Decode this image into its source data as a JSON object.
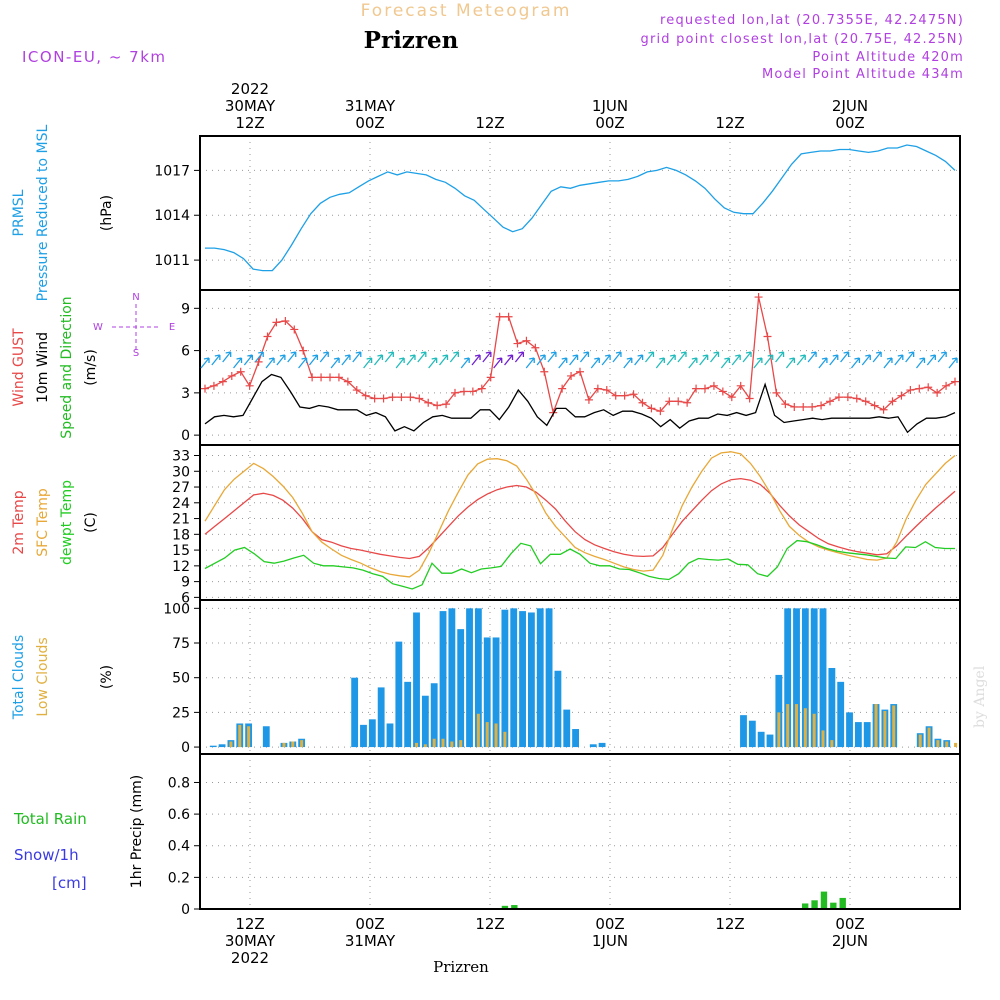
{
  "header": {
    "super_title": "Forecast Meteogram",
    "title": "Prizren",
    "model": "ICON-EU, ~ 7km",
    "requested": "requested lon,lat (20.7355E, 42.2475N)",
    "grid_point": "grid point closest lon,lat (20.75E, 42.25N)",
    "point_altitude": "Point Altitude 420m",
    "model_altitude": "Model Point Altitude 434m",
    "footer": "Prizren",
    "watermark": "by Angel"
  },
  "colors": {
    "pressure": "#1ea0e6",
    "gust": "#e84848",
    "wind": "#000000",
    "temp2m": "#e84848",
    "sfc": "#e8a838",
    "dewpt": "#22cc22",
    "total_clouds": "#1e98e6",
    "low_clouds": "#e0b040",
    "rain": "#22bb22",
    "snow": "#3a3ae0",
    "label_purple": "#b040e0",
    "super_title": "#f0c890",
    "grid": "#999999"
  },
  "time_axis": {
    "top": [
      {
        "h": 12,
        "lines": [
          "2022",
          "30MAY",
          "12Z"
        ]
      },
      {
        "h": 24,
        "lines": [
          "31MAY",
          "00Z"
        ]
      },
      {
        "h": 36,
        "lines": [
          "12Z"
        ]
      },
      {
        "h": 48,
        "lines": [
          "1JUN",
          "00Z"
        ]
      },
      {
        "h": 60,
        "lines": [
          "12Z"
        ]
      },
      {
        "h": 72,
        "lines": [
          "2JUN",
          "00Z"
        ]
      }
    ],
    "bottom": [
      {
        "h": 12,
        "lines": [
          "12Z",
          "30MAY",
          "2022"
        ]
      },
      {
        "h": 24,
        "lines": [
          "00Z",
          "31MAY"
        ]
      },
      {
        "h": 36,
        "lines": [
          "12Z"
        ]
      },
      {
        "h": 48,
        "lines": [
          "00Z",
          "1JUN"
        ]
      },
      {
        "h": 60,
        "lines": [
          "12Z"
        ]
      },
      {
        "h": 72,
        "lines": [
          "00Z",
          "2JUN"
        ]
      }
    ],
    "start_hour": 7,
    "end_hour": 83
  },
  "chart_data": [
    {
      "type": "line",
      "panel": "pressure",
      "ylabels": [
        {
          "text": "PRMSL",
          "color": "#1ea0e6"
        },
        {
          "text": "Pressure Reduced to MSL",
          "color": "#1ea0e6"
        },
        {
          "text": "(hPa)",
          "color": "#000000"
        }
      ],
      "yticks": [
        1011,
        1014,
        1017
      ],
      "ylim": [
        1009,
        1019.3
      ],
      "series": [
        {
          "key": "prmsl",
          "values": [
            1011.8,
            1011.8,
            1011.7,
            1011.5,
            1011.1,
            1010.4,
            1010.3,
            1010.3,
            1011,
            1012,
            1013.1,
            1014.1,
            1014.8,
            1015.2,
            1015.4,
            1015.5,
            1015.9,
            1016.3,
            1016.6,
            1016.9,
            1016.7,
            1016.9,
            1016.8,
            1016.7,
            1016.4,
            1016.2,
            1015.8,
            1015.3,
            1015,
            1014.4,
            1013.8,
            1013.2,
            1012.9,
            1013.1,
            1013.8,
            1014.7,
            1015.6,
            1015.9,
            1015.8,
            1016,
            1016.1,
            1016.2,
            1016.3,
            1016.3,
            1016.4,
            1016.6,
            1016.9,
            1017,
            1017.2,
            1017,
            1016.7,
            1016.3,
            1015.8,
            1015.1,
            1014.5,
            1014.2,
            1014.1,
            1014.1,
            1014.8,
            1015.6,
            1016.5,
            1017.4,
            1018.1,
            1018.2,
            1018.3,
            1018.3,
            1018.4,
            1018.4,
            1018.3,
            1018.2,
            1018.3,
            1018.5,
            1018.5,
            1018.7,
            1018.6,
            1018.3,
            1018,
            1017.6,
            1017
          ]
        }
      ]
    },
    {
      "type": "line",
      "panel": "wind",
      "ylabels": [
        {
          "text": "Wind GUST",
          "color": "#e84848"
        },
        {
          "text": "10m Wind",
          "color": "#000000"
        },
        {
          "text": "Speed and Direction",
          "color": "#22bb22"
        },
        {
          "text": "(m/s)",
          "color": "#000000"
        }
      ],
      "compass": {
        "north": "N",
        "south": "S",
        "west": "W",
        "east": "E"
      },
      "yticks": [
        0,
        3,
        6,
        9
      ],
      "ylim": [
        -0.7,
        10.3
      ],
      "series": [
        {
          "key": "gust",
          "values": [
            3.3,
            3.5,
            3.8,
            4.2,
            4.5,
            3.5,
            5.2,
            7,
            8,
            8.1,
            7.5,
            6,
            4.1,
            4.1,
            4.1,
            4.1,
            3.8,
            3.2,
            2.8,
            2.6,
            2.6,
            2.7,
            2.7,
            2.7,
            2.6,
            2.3,
            2.1,
            2.2,
            3,
            3.1,
            3.1,
            3.3,
            4.1,
            8.4,
            8.4,
            6.5,
            6.7,
            6.2,
            4.5,
            1.6,
            3.3,
            4.2,
            4.5,
            2.5,
            3.3,
            3.2,
            2.8,
            2.8,
            2.9,
            2.3,
            1.9,
            1.7,
            2.4,
            2.4,
            2.3,
            3.3,
            3.3,
            3.5,
            3.1,
            2.7,
            3.5,
            2.6,
            9.8,
            7,
            3,
            2.2,
            2,
            2,
            2,
            2.1,
            2.4,
            2.7,
            2.7,
            2.6,
            2.4,
            2.1,
            1.8,
            2.4,
            2.8,
            3.2,
            3.3,
            3.4,
            3,
            3.5,
            3.8
          ]
        },
        {
          "key": "wind10m",
          "values": [
            0.8,
            1.3,
            1.4,
            1.3,
            1.4,
            2.6,
            3.8,
            4.3,
            4.1,
            3.1,
            2,
            1.9,
            2.1,
            2,
            1.8,
            1.8,
            1.8,
            1.4,
            1.6,
            1.3,
            0.3,
            0.6,
            0.3,
            0.9,
            1.3,
            1.4,
            1.2,
            1.2,
            1.2,
            1.8,
            1.8,
            1.1,
            2,
            3.2,
            2.4,
            1.3,
            0.7,
            1.9,
            1.9,
            1.3,
            1.3,
            1.6,
            1.8,
            1.4,
            1.7,
            1.7,
            1.5,
            1.2,
            0.6,
            1.1,
            0.5,
            1,
            1.2,
            1.2,
            1.5,
            1.4,
            1.6,
            1.4,
            1.6,
            3.6,
            1.4,
            0.9,
            1,
            1.1,
            1.2,
            1.1,
            1.2,
            1.2,
            1.2,
            1.2,
            1.2,
            1.3,
            1.2,
            1.3,
            0.2,
            0.8,
            1.2,
            1.2,
            1.3,
            1.6
          ]
        }
      ]
    },
    {
      "type": "line",
      "panel": "temperature",
      "ylabels": [
        {
          "text": "2m Temp",
          "color": "#e84848"
        },
        {
          "text": "SFC Temp",
          "color": "#e8a838"
        },
        {
          "text": "dewpt Temp",
          "color": "#22cc22"
        },
        {
          "text": "(C)",
          "color": "#000000"
        }
      ],
      "yticks": [
        6,
        9,
        12,
        15,
        18,
        21,
        24,
        27,
        30,
        33
      ],
      "ylim": [
        5.5,
        35
      ],
      "series": [
        {
          "key": "temp2m",
          "values": [
            18,
            19.5,
            21,
            22.5,
            24,
            25.5,
            25.8,
            25.4,
            24.5,
            23,
            21,
            18.5,
            17,
            16.5,
            15.8,
            15.3,
            15,
            14.6,
            14.2,
            13.9,
            13.6,
            13.4,
            13.8,
            15.5,
            17.5,
            19.5,
            21.5,
            23.2,
            24.6,
            25.7,
            26.5,
            27,
            27.3,
            27,
            26,
            24.5,
            22.8,
            20.5,
            18.5,
            17,
            16,
            15.3,
            14.7,
            14.2,
            13.9,
            13.8,
            13.9,
            15.5,
            18,
            20.5,
            22.5,
            24.5,
            26.3,
            27.6,
            28.4,
            28.6,
            28.3,
            27.5,
            25.8,
            23.5,
            21.5,
            19.8,
            18.5,
            17.2,
            16.2,
            15.6,
            15.1,
            14.7,
            14.4,
            14.1,
            14.3,
            15.8,
            17.7,
            19.5,
            21.3,
            23,
            24.6,
            26.2
          ]
        },
        {
          "key": "sfc",
          "values": [
            20.5,
            23.5,
            26.5,
            28.5,
            30,
            31.5,
            30.5,
            29,
            27.2,
            25,
            22,
            18.5,
            16.5,
            15.2,
            14,
            13.2,
            12.5,
            11.6,
            10.9,
            10.4,
            10.1,
            9.9,
            11.2,
            14.5,
            18.5,
            22.5,
            26,
            29.3,
            31.4,
            32.3,
            32.4,
            32,
            31,
            28.5,
            25.5,
            22,
            19.5,
            17.5,
            15.5,
            14.5,
            13.8,
            13.2,
            12.5,
            11.8,
            11.3,
            11,
            11.2,
            14,
            19,
            23.5,
            27,
            30,
            32.5,
            33.5,
            33.7,
            33.3,
            31.5,
            29,
            26,
            22.5,
            19.5,
            17.8,
            16.5,
            15.6,
            15,
            14.5,
            14,
            13.6,
            13.2,
            13.1,
            13.5,
            16.5,
            21,
            24.5,
            27.5,
            29.5,
            31.5,
            33
          ]
        },
        {
          "key": "dewpt",
          "values": [
            11.5,
            12.5,
            13.5,
            15,
            15.5,
            14.3,
            12.8,
            12.5,
            12.9,
            13.5,
            14,
            12.5,
            12,
            12,
            11.8,
            11.6,
            11.2,
            10.5,
            10,
            8.6,
            8.1,
            7.6,
            8.4,
            12.5,
            10.6,
            10.6,
            11.4,
            10.7,
            11.4,
            11.6,
            11.9,
            14.3,
            16.3,
            15.8,
            12.4,
            14.2,
            14.2,
            15.2,
            14.2,
            12.5,
            12,
            12,
            11.4,
            11.3,
            10.7,
            10,
            9.6,
            9.4,
            10.5,
            12.5,
            13.4,
            13.2,
            13.1,
            13.3,
            12.3,
            12.2,
            10.5,
            10,
            11.8,
            15.3,
            16.8,
            16.6,
            16,
            15.3,
            14.8,
            14.5,
            14.3,
            14.1,
            13.8,
            13.5,
            13.4,
            15.6,
            15.5,
            16.6,
            15.5,
            15.3,
            15.3
          ]
        }
      ]
    },
    {
      "type": "bar",
      "panel": "clouds",
      "ylabels": [
        {
          "text": "Total Clouds",
          "color": "#1ea0e6"
        },
        {
          "text": "Low Clouds",
          "color": "#e0b040"
        },
        {
          "text": "(%)",
          "color": "#000000"
        }
      ],
      "yticks": [
        0,
        25,
        50,
        75,
        100
      ],
      "ylim": [
        -5,
        106
      ],
      "series": [
        {
          "key": "total",
          "values": [
            0,
            1,
            2,
            5,
            17,
            17,
            0,
            15,
            0,
            3,
            4,
            6,
            0,
            0,
            0,
            0,
            0,
            50,
            16,
            20,
            43,
            17,
            76,
            47,
            97,
            37,
            46,
            98,
            100,
            85,
            100,
            100,
            79,
            79,
            99,
            100,
            98,
            97,
            100,
            100,
            55,
            27,
            13,
            0,
            2,
            3,
            0,
            0,
            0,
            0,
            0,
            0,
            0,
            0,
            0,
            0,
            0,
            0,
            0,
            0,
            0,
            23,
            19,
            11,
            9,
            52,
            100,
            100,
            100,
            100,
            100,
            57,
            47,
            25,
            18,
            18,
            31,
            27,
            31,
            0,
            0,
            10,
            15,
            6,
            5,
            0
          ]
        },
        {
          "key": "low",
          "values": [
            0,
            0,
            0,
            4,
            16,
            15,
            0,
            0,
            0,
            3,
            4,
            5,
            0,
            0,
            0,
            0,
            0,
            0,
            0,
            0,
            0,
            0,
            0,
            0,
            3,
            2,
            6,
            6,
            4,
            5,
            0,
            24,
            18,
            17,
            11,
            0,
            0,
            0,
            0,
            0,
            0,
            0,
            0,
            0,
            0,
            0,
            0,
            0,
            0,
            0,
            0,
            0,
            0,
            0,
            0,
            0,
            0,
            0,
            0,
            0,
            0,
            0,
            0,
            0,
            0,
            25,
            31,
            31,
            28,
            24,
            12,
            5,
            0,
            0,
            0,
            0,
            31,
            26,
            30,
            0,
            0,
            9,
            14,
            5,
            4,
            3
          ]
        }
      ]
    },
    {
      "type": "bar",
      "panel": "precip",
      "ylabels": [
        {
          "text": "Total  Rain",
          "color": "#22bb22"
        },
        {
          "text": "Snow/1h",
          "color": "#3a3ae0"
        },
        {
          "text": "[cm]",
          "color": "#3a3ae0"
        },
        {
          "text": "1hr Precip (mm)",
          "color": "#000000"
        }
      ],
      "yticks": [
        0,
        0.2,
        0.4,
        0.6,
        0.8
      ],
      "ytick_labels": [
        "0",
        "0.2",
        "0.4",
        "0.6",
        "0.8"
      ],
      "ylim": [
        0,
        0.98
      ],
      "series": [
        {
          "key": "rain",
          "values": [
            0,
            0,
            0,
            0,
            0,
            0,
            0,
            0,
            0,
            0,
            0,
            0,
            0,
            0,
            0,
            0,
            0,
            0,
            0,
            0,
            0,
            0,
            0,
            0,
            0,
            0,
            0,
            0,
            0,
            0,
            0,
            0,
            0.02,
            0.025,
            0,
            0,
            0,
            0,
            0,
            0,
            0,
            0,
            0,
            0,
            0,
            0,
            0,
            0,
            0,
            0,
            0,
            0,
            0,
            0,
            0,
            0,
            0,
            0,
            0,
            0,
            0,
            0,
            0,
            0,
            0.035,
            0.055,
            0.11,
            0.04,
            0.07,
            0,
            0,
            0,
            0,
            0,
            0,
            0,
            0,
            0,
            0,
            0,
            0
          ]
        }
      ]
    }
  ]
}
